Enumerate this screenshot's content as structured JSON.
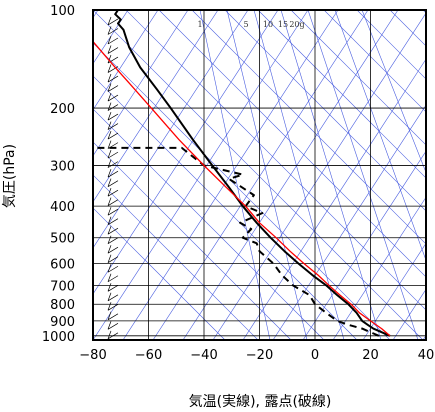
{
  "chart_data": {
    "type": "line",
    "title": "",
    "xlabel": "気温(実線), 露点(破線)",
    "ylabel": "気圧(hPa)",
    "xlim": [
      -80,
      40
    ],
    "ylim": [
      1030,
      100
    ],
    "y_scale": "log",
    "grid": true,
    "x_ticks": [
      "−80",
      "−60",
      "−40",
      "−20",
      "0",
      "20",
      "40"
    ],
    "y_ticks": [
      "100",
      "200",
      "300",
      "400",
      "500",
      "600",
      "700",
      "800",
      "900",
      "1000"
    ],
    "mixing_ratio_labels": [
      "1",
      "5",
      "10",
      "15",
      "20g"
    ],
    "colors": {
      "temperature": "#000000",
      "dewpoint": "#000000",
      "parcel": "#ff0000",
      "guide_lines": "#4a5ee0",
      "grid": "#000000"
    },
    "series": [
      {
        "style": "solid",
        "points": [
          [
            27,
            1000
          ],
          [
            24,
            975
          ],
          [
            21,
            950
          ],
          [
            19,
            925
          ],
          [
            17,
            900
          ],
          [
            15,
            850
          ],
          [
            12,
            800
          ],
          [
            8,
            750
          ],
          [
            4,
            700
          ],
          [
            -1,
            650
          ],
          [
            -6,
            600
          ],
          [
            -11,
            550
          ],
          [
            -16,
            500
          ],
          [
            -21,
            450
          ],
          [
            -26,
            400
          ],
          [
            -31,
            350
          ],
          [
            -37,
            300
          ],
          [
            -44,
            250
          ],
          [
            -52,
            200
          ],
          [
            -57,
            175
          ],
          [
            -63,
            150
          ],
          [
            -67,
            130
          ],
          [
            -69,
            115
          ],
          [
            -71,
            110
          ],
          [
            -70,
            107
          ],
          [
            -72,
            103
          ],
          [
            -71,
            100
          ]
        ]
      },
      {
        "style": "dashed",
        "points": [
          [
            23,
            1000
          ],
          [
            20,
            975
          ],
          [
            17,
            950
          ],
          [
            12,
            925
          ],
          [
            8,
            900
          ],
          [
            4,
            850
          ],
          [
            0,
            800
          ],
          [
            -2,
            750
          ],
          [
            -8,
            700
          ],
          [
            -12,
            650
          ],
          [
            -15,
            600
          ],
          [
            -20,
            550
          ],
          [
            -21,
            520
          ],
          [
            -26,
            500
          ],
          [
            -23,
            470
          ],
          [
            -27,
            450
          ],
          [
            -19,
            420
          ],
          [
            -25,
            400
          ],
          [
            -22,
            370
          ],
          [
            -31,
            330
          ],
          [
            -26,
            320
          ],
          [
            -40,
            300
          ],
          [
            -48,
            265
          ],
          [
            -79,
            265
          ]
        ]
      },
      {
        "style": "solid",
        "points": [
          [
            27,
            1000
          ],
          [
            24,
            950
          ],
          [
            20,
            900
          ],
          [
            16,
            850
          ],
          [
            13,
            800
          ],
          [
            9,
            750
          ],
          [
            5,
            700
          ],
          [
            1,
            650
          ],
          [
            -4,
            600
          ],
          [
            -9,
            550
          ],
          [
            -14,
            500
          ],
          [
            -20,
            450
          ],
          [
            -25,
            400
          ],
          [
            -32,
            350
          ],
          [
            -40,
            300
          ],
          [
            -49,
            250
          ],
          [
            -59,
            200
          ],
          [
            -65,
            175
          ],
          [
            -72,
            150
          ],
          [
            -80,
            125
          ]
        ]
      }
    ]
  }
}
